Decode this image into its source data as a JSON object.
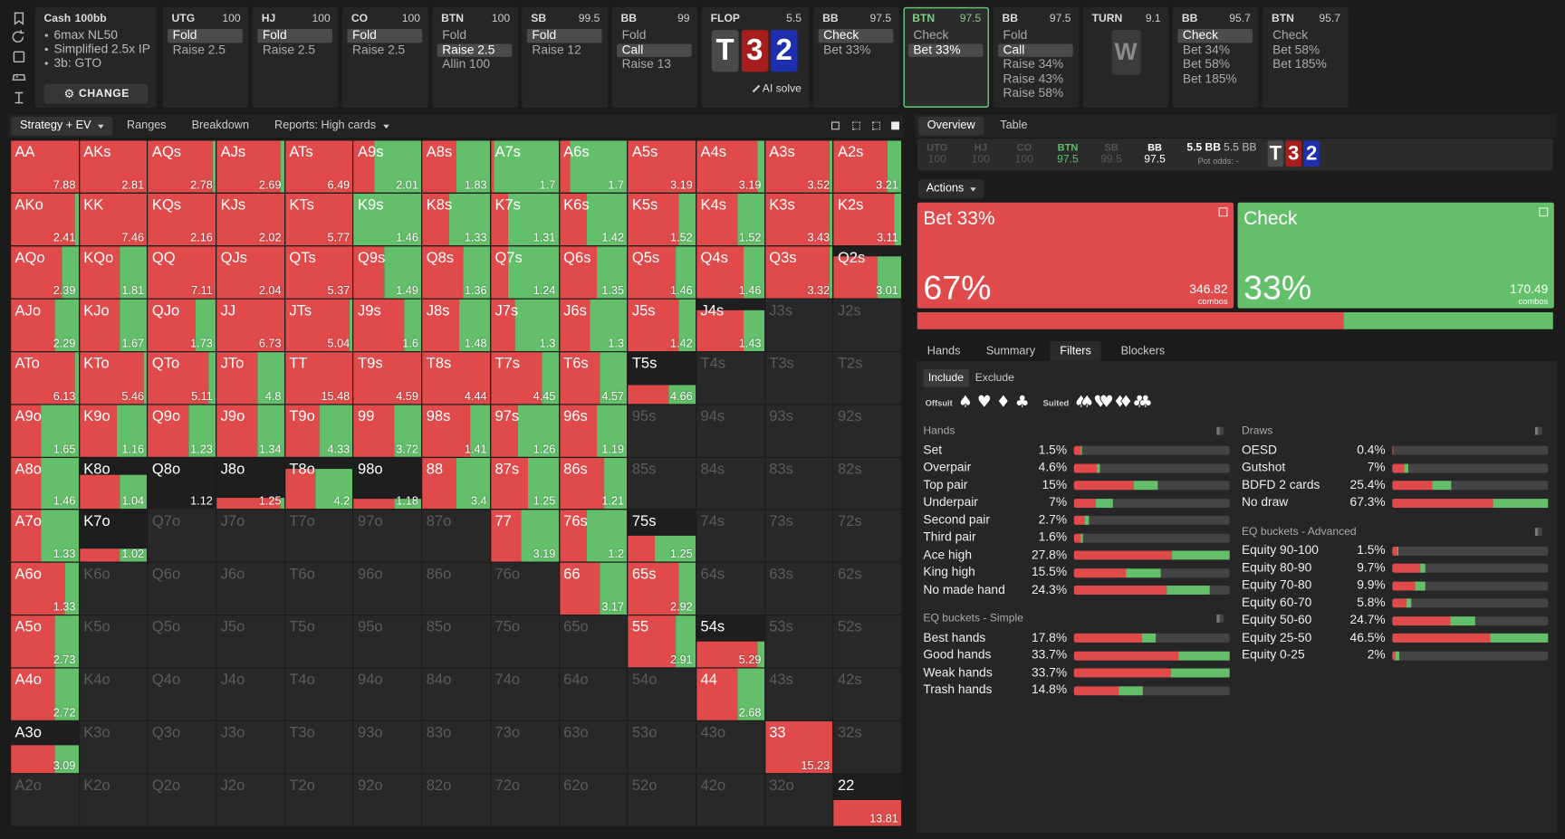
{
  "top_bar": {
    "settings": {
      "title": "Cash",
      "stack": "100bb",
      "items": [
        "6max NL50",
        "Simplified 2.5x IP",
        "3b: GTO"
      ],
      "button": "CHANGE"
    },
    "active_column": 8,
    "columns": [
      {
        "position": "UTG",
        "stack": 100,
        "actions": [
          "Fold",
          "Raise 2.5"
        ],
        "selected": 0
      },
      {
        "position": "HJ",
        "stack": 100,
        "actions": [
          "Fold",
          "Raise 2.5"
        ],
        "selected": 0
      },
      {
        "position": "CO",
        "stack": 100,
        "actions": [
          "Fold",
          "Raise 2.5"
        ],
        "selected": 0
      },
      {
        "position": "BTN",
        "stack": 100,
        "actions": [
          "Fold",
          "Raise 2.5",
          "Allin 100"
        ],
        "selected": 1
      },
      {
        "position": "SB",
        "stack": 99.5,
        "actions": [
          "Fold",
          "Raise 12"
        ],
        "selected": 0
      },
      {
        "position": "BB",
        "stack": 99,
        "actions": [
          "Fold",
          "Call",
          "Raise 13"
        ],
        "selected": 1
      },
      {
        "street": "FLOP",
        "pot": 5.5,
        "cards": [
          {
            "rank": "T",
            "color": "#4a4a4a",
            "text_color": "#ffffff"
          },
          {
            "rank": "3",
            "color": "#a51d1d",
            "text_color": "#ffffff"
          },
          {
            "rank": "2",
            "color": "#1d2fae",
            "text_color": "#ffffff"
          }
        ],
        "button": "AI solve"
      },
      {
        "position": "BB",
        "stack": 97.5,
        "actions": [
          "Check",
          "Bet 33%"
        ],
        "selected": 0
      },
      {
        "position": "BTN",
        "stack": 97.5,
        "actions": [
          "Check",
          "Bet 33%"
        ],
        "selected": 1
      },
      {
        "position": "BB",
        "stack": 97.5,
        "actions": [
          "Fold",
          "Call",
          "Raise 34%",
          "Raise 43%",
          "Raise 58%"
        ],
        "selected": 1
      },
      {
        "street": "TURN",
        "pot": 9.1,
        "cards": [
          {
            "rank": "W",
            "color": "#3c3c3c",
            "text_color": "#8a8a8a"
          }
        ]
      },
      {
        "position": "BB",
        "stack": 95.7,
        "actions": [
          "Check",
          "Bet 34%",
          "Bet 58%",
          "Bet 185%"
        ],
        "selected": 0
      },
      {
        "position": "BTN",
        "stack": 95.7,
        "actions": [
          "Check",
          "Bet 58%",
          "Bet 185%"
        ],
        "selected": null
      }
    ]
  },
  "toolbar": {
    "tabs": [
      {
        "label": "Strategy + EV",
        "dropdown": true
      },
      {
        "label": "Ranges",
        "dropdown": false
      },
      {
        "label": "Breakdown",
        "dropdown": false
      },
      {
        "label": "Reports: High cards",
        "dropdown": true
      }
    ],
    "selected": 0
  },
  "colors": {
    "bet": "#e04a4a",
    "check": "#63bf6a"
  },
  "hand_grid": {
    "names": [
      [
        "AA",
        "AKs",
        "AQs",
        "AJs",
        "ATs",
        "A9s",
        "A8s",
        "A7s",
        "A6s",
        "A5s",
        "A4s",
        "A3s",
        "A2s"
      ],
      [
        "AKo",
        "KK",
        "KQs",
        "KJs",
        "KTs",
        "K9s",
        "K8s",
        "K7s",
        "K6s",
        "K5s",
        "K4s",
        "K3s",
        "K2s"
      ],
      [
        "AQo",
        "KQo",
        "QQ",
        "QJs",
        "QTs",
        "Q9s",
        "Q8s",
        "Q7s",
        "Q6s",
        "Q5s",
        "Q4s",
        "Q3s",
        "Q2s"
      ],
      [
        "AJo",
        "KJo",
        "QJo",
        "JJ",
        "JTs",
        "J9s",
        "J8s",
        "J7s",
        "J6s",
        "J5s",
        "J4s",
        "J3s",
        "J2s"
      ],
      [
        "ATo",
        "KTo",
        "QTo",
        "JTo",
        "TT",
        "T9s",
        "T8s",
        "T7s",
        "T6s",
        "T5s",
        "T4s",
        "T3s",
        "T2s"
      ],
      [
        "A9o",
        "K9o",
        "Q9o",
        "J9o",
        "T9o",
        "99",
        "98s",
        "97s",
        "96s",
        "95s",
        "94s",
        "93s",
        "92s"
      ],
      [
        "A8o",
        "K8o",
        "Q8o",
        "J8o",
        "T8o",
        "98o",
        "88",
        "87s",
        "86s",
        "85s",
        "84s",
        "83s",
        "82s"
      ],
      [
        "A7o",
        "K7o",
        "Q7o",
        "J7o",
        "T7o",
        "97o",
        "87o",
        "77",
        "76s",
        "75s",
        "74s",
        "73s",
        "72s"
      ],
      [
        "A6o",
        "K6o",
        "Q6o",
        "J6o",
        "T6o",
        "96o",
        "86o",
        "76o",
        "66",
        "65s",
        "64s",
        "63s",
        "62s"
      ],
      [
        "A5o",
        "K5o",
        "Q5o",
        "J5o",
        "T5o",
        "95o",
        "85o",
        "75o",
        "65o",
        "55",
        "54s",
        "53s",
        "52s"
      ],
      [
        "A4o",
        "K4o",
        "Q4o",
        "J4o",
        "T4o",
        "94o",
        "84o",
        "74o",
        "64o",
        "54o",
        "44",
        "43s",
        "42s"
      ],
      [
        "A3o",
        "K3o",
        "Q3o",
        "J3o",
        "T3o",
        "93o",
        "83o",
        "73o",
        "63o",
        "53o",
        "43o",
        "33",
        "32s"
      ],
      [
        "A2o",
        "K2o",
        "Q2o",
        "J2o",
        "T2o",
        "92o",
        "82o",
        "72o",
        "62o",
        "52o",
        "42o",
        "32o",
        "22"
      ]
    ],
    "ev": [
      [
        7.88,
        2.81,
        2.78,
        2.69,
        6.49,
        2.01,
        1.83,
        1.7,
        1.7,
        3.19,
        3.19,
        3.52,
        3.21
      ],
      [
        2.41,
        7.46,
        2.16,
        2.02,
        5.77,
        1.46,
        1.33,
        1.31,
        1.42,
        1.52,
        1.52,
        3.43,
        3.11
      ],
      [
        2.39,
        1.81,
        7.11,
        2.04,
        5.37,
        1.49,
        1.36,
        1.24,
        1.35,
        1.46,
        1.46,
        3.32,
        3.01
      ],
      [
        2.29,
        1.67,
        1.73,
        6.73,
        5.04,
        1.6,
        1.48,
        1.3,
        1.3,
        1.42,
        1.43,
        null,
        null
      ],
      [
        6.13,
        5.46,
        5.11,
        4.8,
        15.48,
        4.59,
        4.44,
        4.45,
        4.57,
        4.66,
        null,
        null,
        null
      ],
      [
        1.65,
        1.16,
        1.23,
        1.34,
        4.33,
        3.72,
        1.41,
        1.26,
        1.19,
        null,
        null,
        null,
        null
      ],
      [
        1.46,
        1.04,
        1.12,
        1.25,
        4.2,
        1.18,
        3.4,
        1.25,
        1.21,
        null,
        null,
        null,
        null
      ],
      [
        1.33,
        1.02,
        null,
        null,
        null,
        null,
        null,
        3.19,
        1.2,
        1.25,
        null,
        null,
        null
      ],
      [
        1.33,
        null,
        null,
        null,
        null,
        null,
        null,
        null,
        3.17,
        2.92,
        null,
        null,
        null
      ],
      [
        2.73,
        null,
        null,
        null,
        null,
        null,
        null,
        null,
        null,
        2.91,
        5.29,
        null,
        null
      ],
      [
        2.72,
        null,
        null,
        null,
        null,
        null,
        null,
        null,
        null,
        null,
        2.68,
        null,
        null
      ],
      [
        3.09,
        null,
        null,
        null,
        null,
        null,
        null,
        null,
        null,
        null,
        null,
        15.23,
        null
      ],
      [
        null,
        null,
        null,
        null,
        null,
        null,
        null,
        null,
        null,
        null,
        null,
        null,
        13.81
      ]
    ],
    "bet": [
      [
        1,
        1,
        0.95,
        0.95,
        1,
        0.3,
        0.5,
        0.05,
        0.15,
        1,
        0.9,
        0.95,
        0.8
      ],
      [
        0.95,
        1,
        1,
        1,
        1,
        0,
        0.4,
        0.25,
        0.4,
        0.75,
        0.6,
        0.95,
        0.9
      ],
      [
        0.75,
        0.6,
        1,
        1,
        1,
        0.45,
        0.6,
        0.25,
        0.55,
        0.7,
        0.7,
        0.95,
        0.65
      ],
      [
        0.65,
        0.6,
        0.7,
        1,
        0.95,
        0.75,
        0.55,
        0.35,
        0.45,
        0.75,
        0.7,
        null,
        null
      ],
      [
        0.95,
        0.95,
        0.9,
        0.6,
        1,
        1,
        1,
        0.75,
        0.6,
        0.6,
        null,
        null,
        null
      ],
      [
        0.45,
        0.55,
        0.6,
        0.6,
        0.5,
        0.6,
        0.7,
        0.4,
        0.55,
        null,
        null,
        null,
        null
      ],
      [
        0.45,
        0.6,
        0.5,
        0.95,
        0.45,
        0.6,
        0.5,
        0.55,
        0.65,
        null,
        null,
        null,
        null
      ],
      [
        0.45,
        0.6,
        null,
        null,
        null,
        null,
        null,
        0.45,
        0.4,
        0.4,
        null,
        null,
        null
      ],
      [
        0.8,
        null,
        null,
        null,
        null,
        null,
        null,
        null,
        0.6,
        0.75,
        null,
        null,
        null
      ],
      [
        0.65,
        null,
        null,
        null,
        null,
        null,
        null,
        null,
        null,
        0.7,
        0.9,
        null,
        null
      ],
      [
        0.65,
        null,
        null,
        null,
        null,
        null,
        null,
        null,
        null,
        null,
        0.6,
        null,
        null
      ],
      [
        0.65,
        null,
        null,
        null,
        null,
        null,
        null,
        null,
        null,
        null,
        null,
        1,
        null
      ],
      [
        null,
        null,
        null,
        null,
        null,
        null,
        null,
        null,
        null,
        null,
        null,
        null,
        1
      ]
    ],
    "weight": [
      [
        1,
        1,
        1,
        1,
        1,
        1,
        1,
        1,
        1,
        1,
        1,
        1,
        1
      ],
      [
        1,
        1,
        1,
        1,
        1,
        1,
        1,
        1,
        1,
        1,
        1,
        1,
        1
      ],
      [
        1,
        1,
        1,
        1,
        1,
        1,
        1,
        1,
        1,
        1,
        1,
        1,
        0.8
      ],
      [
        1,
        1,
        1,
        1,
        1,
        1,
        1,
        1,
        1,
        1,
        0.78,
        0,
        0
      ],
      [
        1,
        1,
        1,
        1,
        1,
        1,
        1,
        1,
        1,
        0.35,
        0,
        0,
        0
      ],
      [
        1,
        1,
        1,
        1,
        1,
        1,
        1,
        1,
        1,
        0,
        0,
        0,
        0
      ],
      [
        1,
        0.66,
        0.01,
        0.22,
        0.78,
        0.2,
        1,
        1,
        1,
        0,
        0,
        0,
        0
      ],
      [
        1,
        0.25,
        0,
        0,
        0,
        0,
        0,
        1,
        1,
        0.5,
        0,
        0,
        0
      ],
      [
        1,
        0,
        0,
        0,
        0,
        0,
        0,
        0,
        1,
        1,
        0,
        0,
        0
      ],
      [
        1,
        0,
        0,
        0,
        0,
        0,
        0,
        0,
        0,
        1,
        0.5,
        0,
        0
      ],
      [
        1,
        0,
        0,
        0,
        0,
        0,
        0,
        0,
        0,
        0,
        1,
        0,
        0
      ],
      [
        0.55,
        0,
        0,
        0,
        0,
        0,
        0,
        0,
        0,
        0,
        0,
        1,
        0
      ],
      [
        0,
        0,
        0,
        0,
        0,
        0,
        0,
        0,
        0,
        0,
        0,
        0,
        0.5
      ]
    ]
  },
  "right_panel": {
    "tabs": [
      "Overview",
      "Table"
    ],
    "selected_tab": 0,
    "positions": [
      {
        "name": "UTG",
        "stack": 100,
        "status": "folded"
      },
      {
        "name": "HJ",
        "stack": 100,
        "status": "folded"
      },
      {
        "name": "CO",
        "stack": 100,
        "status": "folded"
      },
      {
        "name": "BTN",
        "stack": 97.5,
        "status": "active"
      },
      {
        "name": "SB",
        "stack": 99.5,
        "status": "folded"
      },
      {
        "name": "BB",
        "stack": 97.5,
        "status": "in"
      }
    ],
    "pot_labels": [
      "5.5 BB",
      "5.5 BB"
    ],
    "pot_odds": "Pot odds: -",
    "board": [
      {
        "rank": "T",
        "color": "#4a4a4a"
      },
      {
        "rank": "3",
        "color": "#a51d1d"
      },
      {
        "rank": "2",
        "color": "#1d2fae"
      }
    ],
    "actions_menu": "Actions",
    "combos_label": "combos",
    "actions": [
      {
        "name": "Bet 33%",
        "value": 67,
        "value_label": "67%",
        "combos": 346.82,
        "color": "#e04a4a"
      },
      {
        "name": "Check",
        "value": 33,
        "value_label": "33%",
        "combos": 170.49,
        "color": "#63bf6a"
      }
    ],
    "subtabs": [
      "Hands",
      "Summary",
      "Filters",
      "Blockers"
    ],
    "selected_subtab": 2,
    "filter_modes": [
      "Include",
      "Exclude"
    ],
    "selected_mode": 0,
    "offsuit_label": "Offsuit",
    "suited_label": "Suited",
    "suits": [
      "♠",
      "♥",
      "♦",
      "♣"
    ],
    "groups": [
      {
        "title": "Hands",
        "column": 0,
        "names": [
          "Set",
          "Overpair",
          "Top pair",
          "Underpair",
          "Second pair",
          "Third pair",
          "Ace high",
          "King high",
          "No made hand"
        ],
        "values": [
          1.5,
          4.6,
          15,
          7,
          2.7,
          1.6,
          27.8,
          15.5,
          24.3
        ],
        "value_labels": [
          "1.5%",
          "4.6%",
          "15%",
          "7%",
          "2.7%",
          "1.6%",
          "27.8%",
          "15.5%",
          "24.3%"
        ],
        "bet": [
          0.8,
          0.9,
          0.71,
          0.55,
          0.7,
          0.8,
          0.63,
          0.6,
          0.68
        ]
      },
      {
        "title": "EQ buckets - Simple",
        "column": 0,
        "names": [
          "Best hands",
          "Good hands",
          "Weak hands",
          "Trash hands"
        ],
        "values": [
          17.8,
          33.7,
          33.7,
          14.8
        ],
        "value_labels": [
          "17.8%",
          "33.7%",
          "33.7%",
          "14.8%"
        ],
        "bet": [
          0.82,
          0.67,
          0.62,
          0.65
        ]
      },
      {
        "title": "Draws",
        "column": 1,
        "names": [
          "OESD",
          "Gutshot",
          "BDFD 2 cards",
          "No draw"
        ],
        "values": [
          0.4,
          7,
          25.4,
          67.3
        ],
        "value_labels": [
          "0.4%",
          "7%",
          "25.4%",
          "67.3%"
        ],
        "bet": [
          1,
          0.75,
          0.68,
          0.65
        ]
      },
      {
        "title": "EQ buckets - Advanced",
        "column": 1,
        "names": [
          "Equity 90-100",
          "Equity 80-90",
          "Equity 70-80",
          "Equity 60-70",
          "Equity 50-60",
          "Equity 25-50",
          "Equity 0-25"
        ],
        "values": [
          1.5,
          9.7,
          9.9,
          5.8,
          24.7,
          46.5,
          2
        ],
        "value_labels": [
          "1.5%",
          "9.7%",
          "9.9%",
          "5.8%",
          "24.7%",
          "46.5%",
          "2%"
        ],
        "bet": [
          0.9,
          0.85,
          0.7,
          0.7,
          0.7,
          0.63,
          0.4
        ]
      }
    ]
  }
}
